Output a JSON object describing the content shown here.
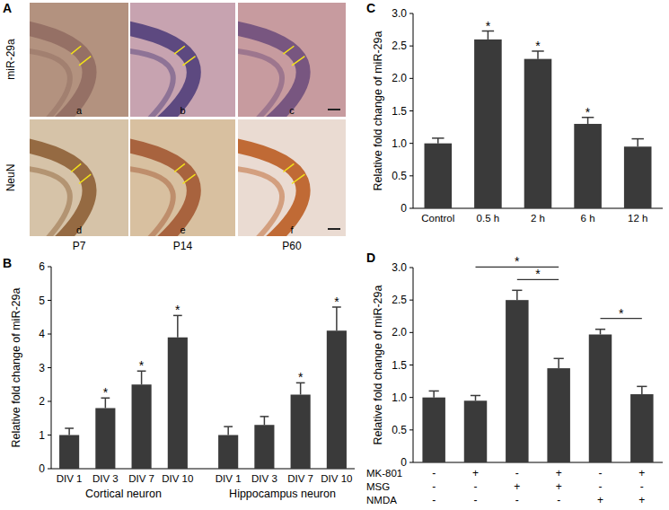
{
  "panel_a": {
    "panel_label": "A",
    "row_labels": [
      "miR-29a",
      "NeuN"
    ],
    "image_labels": [
      "a",
      "b",
      "c",
      "d",
      "e",
      "f"
    ],
    "column_labels": [
      "P7",
      "P14",
      "P60"
    ]
  },
  "chart_data": [
    {
      "type": "bar",
      "panel_label": "B",
      "y_label": "Relative fold change of miR-29a",
      "color": "#3a3a3a",
      "ylim": [
        0,
        6
      ],
      "yticks": [
        0,
        1,
        2,
        3,
        4,
        5,
        6
      ],
      "grid": false,
      "groups": [
        {
          "label": "Cortical neuron",
          "categories": [
            "DIV 1",
            "DIV 3",
            "DIV 7",
            "DIV 10"
          ],
          "values": [
            1,
            1.8,
            2.5,
            3.9
          ],
          "errors": [
            0.2,
            0.3,
            0.4,
            0.65
          ],
          "significance": [
            null,
            "*",
            "*",
            "*"
          ]
        },
        {
          "label": "Hippocampus neuron",
          "categories": [
            "DIV 1",
            "DIV 3",
            "DIV 7",
            "DIV 10"
          ],
          "values": [
            1,
            1.3,
            2.2,
            4.1
          ],
          "errors": [
            0.25,
            0.25,
            0.35,
            0.7
          ],
          "significance": [
            null,
            null,
            "*",
            "*"
          ]
        }
      ]
    },
    {
      "type": "bar",
      "panel_label": "C",
      "y_label": "Relative fold change of miR-29a",
      "color": "#3a3a3a",
      "ylim": [
        0,
        3
      ],
      "yticks": [
        0,
        0.5,
        {
          "value": 1,
          "label": "1.0"
        },
        1.5,
        {
          "value": 2,
          "label": "2.0"
        },
        2.5,
        {
          "value": 3,
          "label": "3.0"
        }
      ],
      "grid": false,
      "categories": [
        "Control",
        "0.5 h",
        "2 h",
        "6 h",
        "12 h"
      ],
      "values": [
        1,
        2.6,
        2.3,
        1.3,
        0.95
      ],
      "errors": [
        0.08,
        0.13,
        0.12,
        0.1,
        0.12
      ],
      "significance": [
        null,
        "*",
        "*",
        "*",
        null
      ]
    },
    {
      "type": "bar",
      "panel_label": "D",
      "y_label": "Relative fold change of miR-29a",
      "color": "#3a3a3a",
      "ylim": [
        0,
        3
      ],
      "yticks": [
        0,
        0.5,
        {
          "value": 1,
          "label": "1.0"
        },
        1.5,
        {
          "value": 2,
          "label": "2.0"
        },
        2.5,
        {
          "value": 3,
          "label": "3.0"
        }
      ],
      "grid": false,
      "values": [
        1,
        0.95,
        2.5,
        1.45,
        1.97,
        1.05
      ],
      "errors": [
        0.1,
        0.08,
        0.15,
        0.15,
        0.08,
        0.12
      ],
      "comparisons": [
        {
          "from": 1,
          "to": 3,
          "label": "*"
        },
        {
          "from": 2,
          "to": 3,
          "label": "*"
        },
        {
          "from": 4,
          "to": 5,
          "label": "*"
        }
      ],
      "table": {
        "rows": [
          {
            "label": "MK-801",
            "cells": [
              "-",
              "+",
              "-",
              "+",
              "-",
              "+"
            ]
          },
          {
            "label": "MSG",
            "cells": [
              "-",
              "-",
              "+",
              "+",
              "-",
              "-"
            ]
          },
          {
            "label": "NMDA",
            "cells": [
              "-",
              "-",
              "-",
              "-",
              "+",
              "+"
            ]
          }
        ]
      }
    }
  ]
}
